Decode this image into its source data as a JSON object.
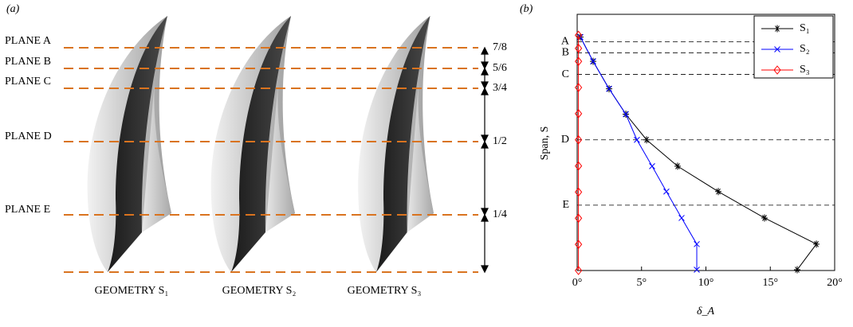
{
  "panel_a": {
    "label": "(a)",
    "planes": [
      "PLANE A",
      "PLANE B",
      "PLANE C",
      "PLANE D",
      "PLANE E"
    ],
    "fractions": [
      "7/8",
      "5/6",
      "3/4",
      "1/2",
      "1/4"
    ],
    "geometries": [
      "GEOMETRY S₁",
      "GEOMETRY S₂",
      "GEOMETRY S₃"
    ]
  },
  "chart_data": {
    "type": "line",
    "panel_label": "(b)",
    "x_label": "δ_A",
    "y_label": "Span, S",
    "xlim": [
      0,
      20
    ],
    "xticks": [
      {
        "value": 0,
        "label": "0°"
      },
      {
        "value": 5,
        "label": "5°"
      },
      {
        "value": 10,
        "label": "10°"
      },
      {
        "value": 15,
        "label": "15°"
      },
      {
        "value": 20,
        "label": "20°"
      }
    ],
    "ylim": [
      0,
      0.98
    ],
    "yticks": [
      {
        "value": 0.875,
        "label": "A"
      },
      {
        "value": 0.833,
        "label": "B"
      },
      {
        "value": 0.75,
        "label": "C"
      },
      {
        "value": 0.5,
        "label": "D"
      },
      {
        "value": 0.25,
        "label": "E"
      }
    ],
    "grid": true,
    "legend": "upper right",
    "series": [
      {
        "name": "S₁",
        "color": "#000000",
        "marker": "star",
        "x": [
          0.25,
          1.24,
          2.48,
          3.78,
          5.39,
          7.8,
          10.96,
          14.55,
          18.58,
          17.09
        ],
        "values": [
          0.893,
          0.8,
          0.695,
          0.598,
          0.5,
          0.399,
          0.302,
          0.201,
          0.101,
          0.003
        ]
      },
      {
        "name": "S₂",
        "color": "#0000ff",
        "marker": "x",
        "x": [
          0.25,
          1.24,
          2.48,
          3.78,
          4.64,
          5.82,
          6.93,
          8.11,
          9.29,
          9.29
        ],
        "values": [
          0.893,
          0.8,
          0.695,
          0.598,
          0.5,
          0.399,
          0.302,
          0.201,
          0.101,
          0.003
        ]
      },
      {
        "name": "S₃",
        "color": "#ff0000",
        "marker": "diamond",
        "x": [
          0.1,
          0.1,
          0.1,
          0.1,
          0.1,
          0.1,
          0.1,
          0.1,
          0.1,
          0.1,
          0.1
        ],
        "values": [
          0.9,
          0.85,
          0.8,
          0.7,
          0.6,
          0.5,
          0.4,
          0.3,
          0.2,
          0.1,
          0.0
        ]
      }
    ]
  }
}
